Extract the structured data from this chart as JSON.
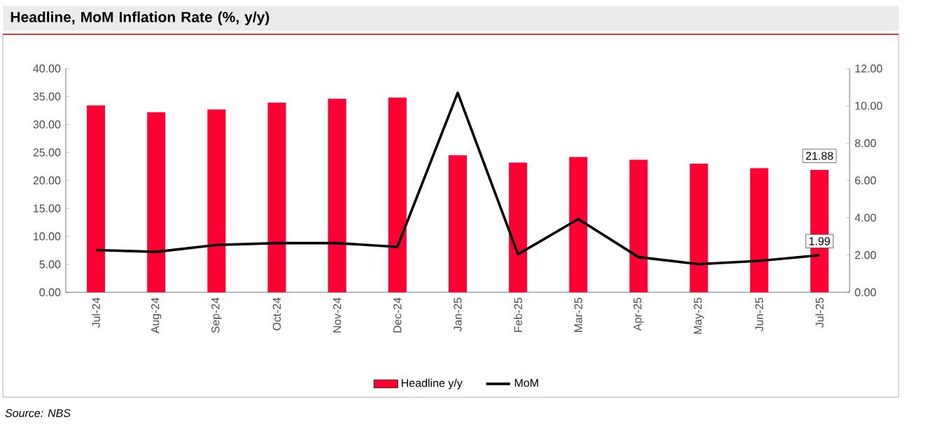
{
  "chart_data": {
    "type": "bar",
    "title": "Headline, MoM Inflation Rate (%, y/y)",
    "categories": [
      "Jul-24",
      "Aug-24",
      "Sep-24",
      "Oct-24",
      "Nov-24",
      "Dec-24",
      "Jan-25",
      "Feb-25",
      "Mar-25",
      "Apr-25",
      "May-25",
      "Jun-25",
      "Jul-25"
    ],
    "series": [
      {
        "name": "Headline y/y",
        "color": "#ff0033",
        "values": [
          33.4,
          32.2,
          32.7,
          33.9,
          34.6,
          34.8,
          24.5,
          23.2,
          24.2,
          23.7,
          23.0,
          22.2,
          21.88
        ],
        "value_labels": [
          null,
          null,
          null,
          null,
          null,
          null,
          null,
          null,
          null,
          null,
          null,
          null,
          "21.88"
        ]
      },
      {
        "name": "MoM",
        "type": "line",
        "axis": "y2",
        "color": "#000000",
        "values": [
          2.27,
          2.17,
          2.54,
          2.64,
          2.64,
          2.44,
          10.7,
          2.04,
          3.93,
          1.89,
          1.51,
          1.69,
          1.99
        ],
        "value_labels": [
          null,
          null,
          null,
          null,
          null,
          null,
          null,
          null,
          null,
          null,
          null,
          null,
          "1.99"
        ]
      }
    ],
    "ylim": [
      0,
      40
    ],
    "yticks": [
      {
        "value": 0,
        "label": "0.00"
      },
      {
        "value": 5,
        "label": "5.00"
      },
      {
        "value": 10,
        "label": "10.00"
      },
      {
        "value": 15,
        "label": "15.00"
      },
      {
        "value": 20,
        "label": "20.00"
      },
      {
        "value": 25,
        "label": "25.00"
      },
      {
        "value": 30,
        "label": "30.00"
      },
      {
        "value": 35,
        "label": "35.00"
      },
      {
        "value": 40,
        "label": "40.00"
      }
    ],
    "y2lim": [
      0,
      12
    ],
    "y2ticks": [
      {
        "value": 0,
        "label": "0.00"
      },
      {
        "value": 2,
        "label": "2.00"
      },
      {
        "value": 4,
        "label": "4.00"
      },
      {
        "value": 6,
        "label": "6.00"
      },
      {
        "value": 8,
        "label": "8.00"
      },
      {
        "value": 10,
        "label": "10.00"
      },
      {
        "value": 12,
        "label": "12.00"
      }
    ],
    "legend": "bottom",
    "grid": false,
    "annotations": [
      "Source: NBS"
    ]
  }
}
